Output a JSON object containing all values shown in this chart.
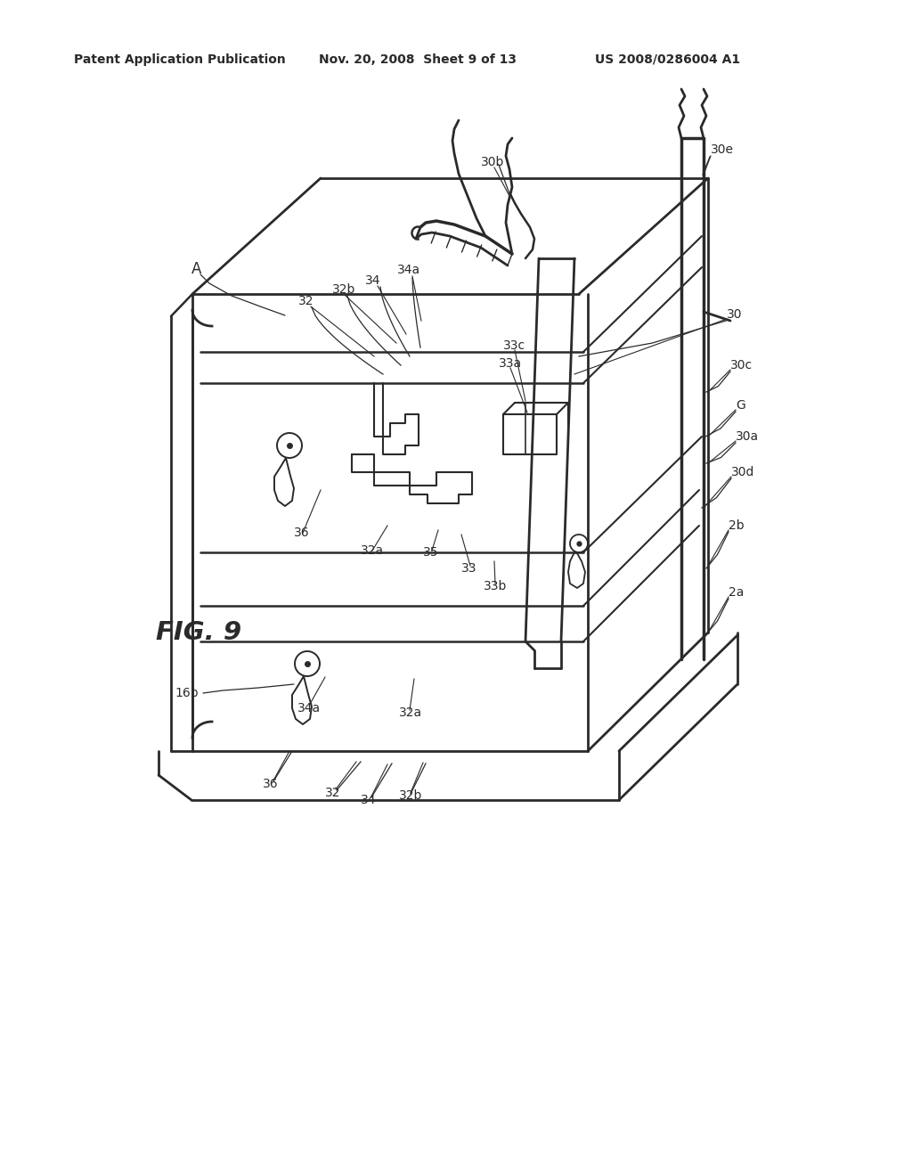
{
  "bg_color": "#ffffff",
  "line_color": "#2a2a2a",
  "header_left": "Patent Application Publication",
  "header_center": "Nov. 20, 2008  Sheet 9 of 13",
  "header_right": "US 2008/0286004 A1",
  "figure_label": "FIG. 9"
}
